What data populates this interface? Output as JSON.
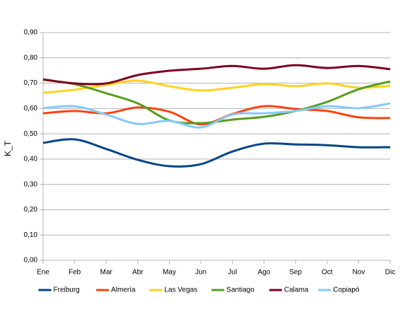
{
  "chart_data": {
    "type": "line",
    "y_label": "K_T",
    "smooth": true,
    "grid": true,
    "categories": [
      "Ene",
      "Feb",
      "Mar",
      "Abr",
      "May",
      "Jun",
      "Jul",
      "Ago",
      "Sep",
      "Oct",
      "Nov",
      "Dic"
    ],
    "ylim": [
      0,
      0.9
    ],
    "yticks": [
      {
        "value": 0,
        "label": "0,00"
      },
      {
        "value": 0.1,
        "label": "0,10"
      },
      {
        "value": 0.2,
        "label": "0,20"
      },
      {
        "value": 0.3,
        "label": "0,30"
      },
      {
        "value": 0.4,
        "label": "0,40"
      },
      {
        "value": 0.5,
        "label": "0,50"
      },
      {
        "value": 0.6,
        "label": "0,60"
      },
      {
        "value": 0.7,
        "label": "0,70"
      },
      {
        "value": 0.8,
        "label": "0,80"
      },
      {
        "value": 0.9,
        "label": "0,90"
      }
    ],
    "series": [
      {
        "name": "Freiburg",
        "color": "#004586",
        "values": [
          0.464,
          0.478,
          0.44,
          0.397,
          0.372,
          0.38,
          0.43,
          0.461,
          0.458,
          0.455,
          0.447,
          0.447
        ]
      },
      {
        "name": "Almería",
        "color": "#ff420e",
        "values": [
          0.581,
          0.59,
          0.581,
          0.604,
          0.587,
          0.537,
          0.578,
          0.609,
          0.598,
          0.59,
          0.565,
          0.562
        ]
      },
      {
        "name": "Las Vegas",
        "color": "#ffd320",
        "values": [
          0.662,
          0.674,
          0.693,
          0.71,
          0.688,
          0.671,
          0.682,
          0.696,
          0.688,
          0.699,
          0.682,
          0.69
        ]
      },
      {
        "name": "Santiago",
        "color": "#579d1c",
        "values": [
          0.713,
          0.696,
          0.66,
          0.62,
          0.553,
          0.542,
          0.556,
          0.567,
          0.59,
          0.626,
          0.676,
          0.707
        ]
      },
      {
        "name": "Calama",
        "color": "#7e0021",
        "values": [
          0.715,
          0.699,
          0.699,
          0.732,
          0.749,
          0.757,
          0.768,
          0.757,
          0.771,
          0.76,
          0.768,
          0.755
        ]
      },
      {
        "name": "Copiapó",
        "color": "#83caff",
        "values": [
          0.601,
          0.609,
          0.576,
          0.539,
          0.551,
          0.525,
          0.576,
          0.581,
          0.59,
          0.609,
          0.601,
          0.62
        ]
      }
    ]
  }
}
